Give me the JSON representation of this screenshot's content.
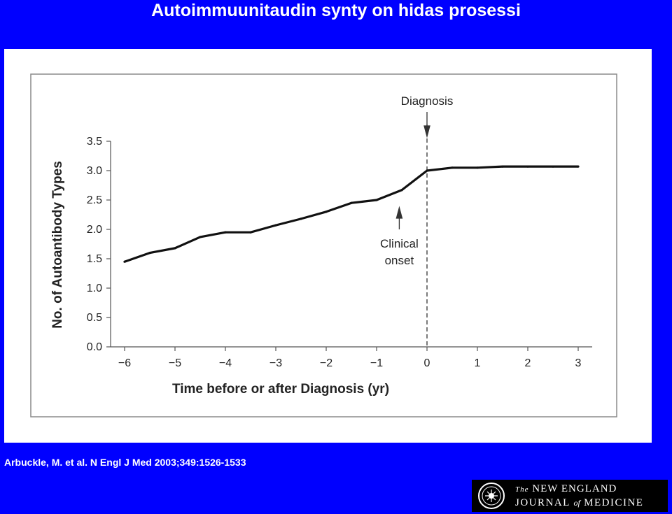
{
  "slide": {
    "title": "Autoimmuunitaudin synty on hidas prosessi",
    "citation": "Arbuckle, M. et al. N Engl J Med 2003;349:1526-1533"
  },
  "logo": {
    "line1_the": "The",
    "line1_rest": "NEW ENGLAND",
    "line2_a": "JOURNAL",
    "line2_of": "of",
    "line2_b": "MEDICINE",
    "icon": "seal-icon"
  },
  "colors": {
    "background": "#0000ff",
    "panel": "#ffffff",
    "line": "#111111"
  },
  "chart_data": {
    "type": "line",
    "title": "",
    "xlabel": "Time before or after Diagnosis (yr)",
    "ylabel": "No. of Autoantibody Types",
    "xlim": [
      -6,
      3
    ],
    "ylim": [
      0,
      3.5
    ],
    "xticks": [
      -6,
      -5,
      -4,
      -3,
      -2,
      -1,
      0,
      1,
      2,
      3
    ],
    "xtick_labels": [
      "−6",
      "−5",
      "−4",
      "−3",
      "−2",
      "−1",
      "0",
      "1",
      "2",
      "3"
    ],
    "yticks": [
      0,
      0.5,
      1,
      1.5,
      2,
      2.5,
      3,
      3.5
    ],
    "ytick_labels": [
      "0.0",
      "0.5",
      "1.0",
      "1.5",
      "2.0",
      "2.5",
      "3.0",
      "3.5"
    ],
    "grid": false,
    "series": [
      {
        "x": [
          -6,
          -5.5,
          -5,
          -4.5,
          -4,
          -3.5,
          -3,
          -2.5,
          -2,
          -1.5,
          -1,
          -0.5,
          0,
          0.5,
          1,
          1.5,
          2,
          2.5,
          3
        ],
        "y": [
          1.45,
          1.6,
          1.68,
          1.87,
          1.95,
          1.95,
          2.07,
          2.18,
          2.3,
          2.45,
          2.5,
          2.67,
          3.0,
          3.05,
          3.05,
          3.07,
          3.07,
          3.07,
          3.07
        ]
      }
    ],
    "annotations": [
      {
        "id": "diagnosis",
        "text": "Diagnosis",
        "x": 0
      },
      {
        "id": "onset",
        "text_lines": [
          "Clinical",
          "onset"
        ],
        "x": -0.55
      }
    ]
  }
}
